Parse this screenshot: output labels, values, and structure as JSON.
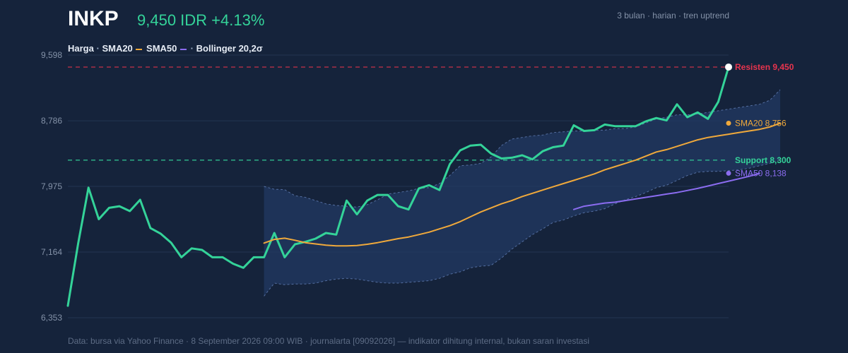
{
  "header": {
    "ticker": "INKP",
    "price_text": "9,450 IDR +4.13%",
    "meta": "3 bulan · harian · tren uptrend"
  },
  "legend": {
    "price": "Harga",
    "sma20": "SMA20",
    "sma50": "SMA50",
    "bollinger": "Bollinger 20,2σ"
  },
  "footer": "Data: bursa via Yahoo Finance · 8 September 2026 09:00 WIB · journalarta [09092026] — indikator dihitung internal, bukan saran investasi",
  "colors": {
    "background": "#15233b",
    "price": "#34d399",
    "sma20": "#f0a93b",
    "sma50": "#8b6cf0",
    "band": "#6e8cc6",
    "resistance": "#e8344e",
    "support": "#34d399",
    "grid": "#223552"
  },
  "chart_data": {
    "type": "line",
    "ylim": [
      6353,
      9598
    ],
    "yticks": [
      {
        "value": 6353,
        "label": "6,353"
      },
      {
        "value": 7164,
        "label": "7,164"
      },
      {
        "value": 7975,
        "label": "7,975"
      },
      {
        "value": 8786,
        "label": "8,786"
      },
      {
        "value": 9598,
        "label": "9,598"
      }
    ],
    "series": [
      {
        "name": "Harga",
        "start_index": 0,
        "values": [
          6500,
          7270,
          7960,
          7570,
          7710,
          7730,
          7670,
          7810,
          7460,
          7390,
          7280,
          7100,
          7210,
          7190,
          7100,
          7100,
          7020,
          6970,
          7100,
          7100,
          7400,
          7100,
          7260,
          7290,
          7330,
          7400,
          7380,
          7800,
          7630,
          7800,
          7870,
          7870,
          7730,
          7690,
          7950,
          7990,
          7930,
          8250,
          8420,
          8480,
          8490,
          8380,
          8320,
          8330,
          8360,
          8310,
          8410,
          8460,
          8480,
          8730,
          8660,
          8670,
          8740,
          8720,
          8720,
          8720,
          8780,
          8820,
          8790,
          8990,
          8830,
          8890,
          8810,
          9020,
          9450
        ]
      },
      {
        "name": "SMA20",
        "start_index": 19,
        "values": [
          7275,
          7320,
          7335,
          7310,
          7280,
          7265,
          7250,
          7240,
          7240,
          7245,
          7260,
          7280,
          7305,
          7330,
          7350,
          7380,
          7410,
          7450,
          7490,
          7540,
          7600,
          7660,
          7710,
          7760,
          7800,
          7850,
          7890,
          7930,
          7970,
          8010,
          8050,
          8090,
          8130,
          8180,
          8220,
          8260,
          8300,
          8350,
          8400,
          8430,
          8470,
          8510,
          8550,
          8580,
          8600,
          8620,
          8640,
          8660,
          8680,
          8710,
          8756
        ]
      },
      {
        "name": "SMA50",
        "start_index": 49,
        "values": [
          7690,
          7730,
          7750,
          7770,
          7780,
          7800,
          7820,
          7840,
          7860,
          7880,
          7900,
          7925,
          7950,
          7980,
          8010,
          8040,
          8070,
          8100,
          8138
        ]
      }
    ],
    "band": {
      "name": "Bollinger 20,2σ",
      "start_index": 19,
      "upper": [
        7975,
        7940,
        7935,
        7860,
        7840,
        7800,
        7760,
        7740,
        7730,
        7720,
        7750,
        7810,
        7880,
        7900,
        7920,
        7950,
        7960,
        8010,
        8110,
        8230,
        8240,
        8260,
        8340,
        8480,
        8560,
        8580,
        8600,
        8610,
        8640,
        8650,
        8660,
        8660,
        8670,
        8670,
        8690,
        8690,
        8710,
        8760,
        8810,
        8830,
        8860,
        8860,
        8870,
        8890,
        8910,
        8930,
        8950,
        8970,
        8990,
        9040,
        9170
      ],
      "lower": [
        6620,
        6780,
        6760,
        6770,
        6770,
        6780,
        6810,
        6830,
        6840,
        6830,
        6810,
        6790,
        6780,
        6780,
        6790,
        6800,
        6810,
        6840,
        6890,
        6920,
        6970,
        6990,
        7000,
        7090,
        7200,
        7290,
        7380,
        7450,
        7530,
        7560,
        7610,
        7650,
        7670,
        7700,
        7760,
        7810,
        7850,
        7900,
        7960,
        7990,
        8050,
        8110,
        8150,
        8160,
        8160,
        8170,
        8180,
        8200,
        8230,
        8260,
        8310
      ]
    },
    "levels": [
      {
        "name": "Resisten",
        "value": 9450,
        "label": "Resisten 9,450"
      },
      {
        "name": "Support",
        "value": 8300,
        "label": "Support 8,300"
      }
    ],
    "end_labels": {
      "sma20": "SMA20 8,756",
      "sma50": "SMA50 8,138"
    }
  }
}
